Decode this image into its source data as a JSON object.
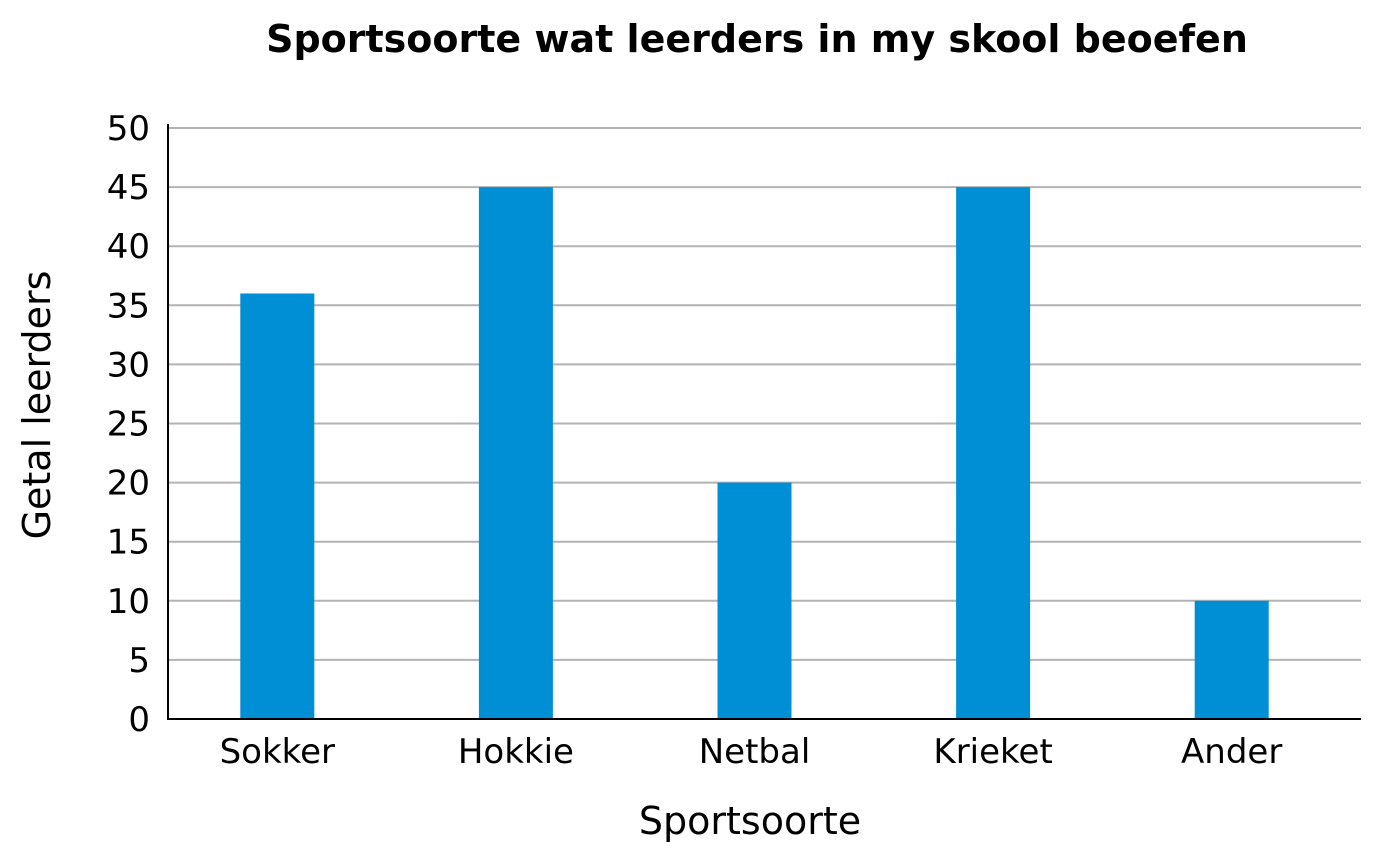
{
  "chart_data": {
    "type": "bar",
    "title": "Sportsoorte wat leerders in my skool beoefen",
    "xlabel": "Sportsoorte",
    "ylabel": "Getal leerders",
    "categories": [
      "Sokker",
      "Hokkie",
      "Netbal",
      "Krieket",
      "Ander"
    ],
    "values": [
      36,
      45,
      20,
      45,
      10
    ],
    "ylim": [
      0,
      50
    ],
    "yticks": [
      0,
      5,
      10,
      15,
      20,
      25,
      30,
      35,
      40,
      45,
      50
    ],
    "grid": true,
    "legend": "none",
    "bar_color": "#008fd5"
  }
}
